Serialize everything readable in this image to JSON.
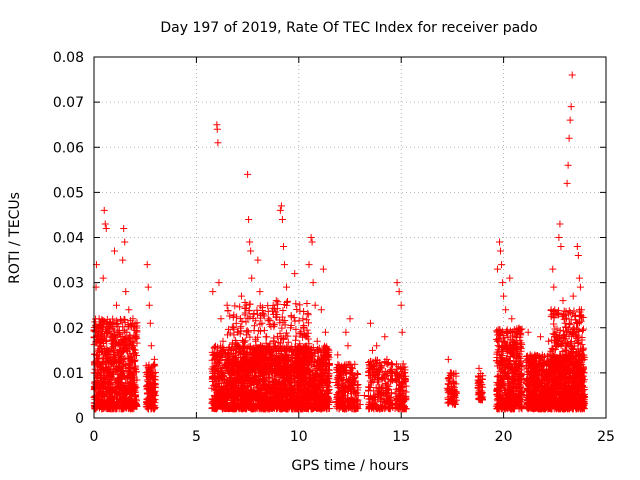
{
  "chart_data": {
    "type": "scatter",
    "title": "Day 197 of 2019, Rate Of TEC Index for receiver pado",
    "xlabel": "GPS time / hours",
    "ylabel": "ROTI / TECUs",
    "xlim": [
      0,
      25
    ],
    "ylim": [
      0,
      0.08
    ],
    "xticks": [
      0,
      5,
      10,
      15,
      20,
      25
    ],
    "xtick_labels": [
      "0",
      "5",
      "10",
      "15",
      "20",
      "25"
    ],
    "yticks": [
      0,
      0.01,
      0.02,
      0.03,
      0.04,
      0.05,
      0.06,
      0.07,
      0.08
    ],
    "ytick_labels": [
      "0",
      "0.01",
      "0.02",
      "0.03",
      "0.04",
      "0.05",
      "0.06",
      "0.07",
      "0.08"
    ],
    "grid": true,
    "marker": "+",
    "color": "#ff0000",
    "series": [
      {
        "name": "ROTI",
        "points": [
          [
            0.05,
            0.008
          ],
          [
            0.1,
            0.029
          ],
          [
            0.12,
            0.034
          ],
          [
            0.15,
            0.012
          ],
          [
            0.2,
            0.005
          ],
          [
            0.25,
            0.022
          ],
          [
            0.3,
            0.018
          ],
          [
            0.4,
            0.011
          ],
          [
            0.45,
            0.031
          ],
          [
            0.5,
            0.046
          ],
          [
            0.55,
            0.043
          ],
          [
            0.6,
            0.042
          ],
          [
            0.65,
            0.015
          ],
          [
            0.7,
            0.009
          ],
          [
            0.8,
            0.021
          ],
          [
            0.9,
            0.006
          ],
          [
            1.0,
            0.037
          ],
          [
            1.05,
            0.016
          ],
          [
            1.1,
            0.025
          ],
          [
            1.2,
            0.008
          ],
          [
            1.3,
            0.013
          ],
          [
            1.4,
            0.035
          ],
          [
            1.45,
            0.042
          ],
          [
            1.5,
            0.039
          ],
          [
            1.55,
            0.028
          ],
          [
            1.6,
            0.019
          ],
          [
            1.7,
            0.024
          ],
          [
            1.8,
            0.011
          ],
          [
            1.9,
            0.022
          ],
          [
            2.0,
            0.007
          ],
          [
            2.6,
            0.034
          ],
          [
            2.65,
            0.029
          ],
          [
            2.7,
            0.025
          ],
          [
            2.75,
            0.021
          ],
          [
            2.8,
            0.016
          ],
          [
            2.85,
            0.009
          ],
          [
            2.9,
            0.005
          ],
          [
            2.95,
            0.013
          ],
          [
            5.8,
            0.028
          ],
          [
            5.9,
            0.012
          ],
          [
            6.0,
            0.065
          ],
          [
            6.02,
            0.064
          ],
          [
            6.05,
            0.061
          ],
          [
            6.1,
            0.03
          ],
          [
            6.2,
            0.022
          ],
          [
            6.3,
            0.017
          ],
          [
            6.4,
            0.01
          ],
          [
            6.5,
            0.025
          ],
          [
            6.6,
            0.014
          ],
          [
            6.8,
            0.008
          ],
          [
            7.0,
            0.019
          ],
          [
            7.2,
            0.027
          ],
          [
            7.4,
            0.012
          ],
          [
            7.5,
            0.054
          ],
          [
            7.55,
            0.044
          ],
          [
            7.6,
            0.039
          ],
          [
            7.65,
            0.037
          ],
          [
            7.7,
            0.031
          ],
          [
            7.8,
            0.023
          ],
          [
            7.9,
            0.016
          ],
          [
            8.0,
            0.035
          ],
          [
            8.1,
            0.028
          ],
          [
            8.2,
            0.021
          ],
          [
            8.3,
            0.013
          ],
          [
            8.4,
            0.018
          ],
          [
            8.5,
            0.009
          ],
          [
            8.7,
            0.015
          ],
          [
            8.9,
            0.026
          ],
          [
            9.1,
            0.046
          ],
          [
            9.15,
            0.047
          ],
          [
            9.2,
            0.044
          ],
          [
            9.25,
            0.038
          ],
          [
            9.3,
            0.034
          ],
          [
            9.4,
            0.029
          ],
          [
            9.6,
            0.02
          ],
          [
            9.8,
            0.032
          ],
          [
            10.0,
            0.014
          ],
          [
            10.2,
            0.022
          ],
          [
            10.4,
            0.018
          ],
          [
            10.5,
            0.034
          ],
          [
            10.6,
            0.04
          ],
          [
            10.65,
            0.039
          ],
          [
            10.7,
            0.03
          ],
          [
            10.8,
            0.025
          ],
          [
            10.9,
            0.017
          ],
          [
            11.0,
            0.011
          ],
          [
            11.1,
            0.024
          ],
          [
            11.2,
            0.033
          ],
          [
            11.3,
            0.019
          ],
          [
            11.4,
            0.008
          ],
          [
            11.9,
            0.014
          ],
          [
            12.0,
            0.011
          ],
          [
            12.1,
            0.009
          ],
          [
            12.2,
            0.007
          ],
          [
            12.3,
            0.019
          ],
          [
            12.4,
            0.016
          ],
          [
            12.5,
            0.022
          ],
          [
            12.6,
            0.01
          ],
          [
            12.7,
            0.006
          ],
          [
            13.0,
            0.003
          ],
          [
            13.2,
            0.005
          ],
          [
            13.5,
            0.021
          ],
          [
            13.6,
            0.015
          ],
          [
            13.7,
            0.011
          ],
          [
            13.8,
            0.016
          ],
          [
            13.9,
            0.008
          ],
          [
            14.0,
            0.004
          ],
          [
            14.2,
            0.018
          ],
          [
            14.3,
            0.013
          ],
          [
            14.4,
            0.007
          ],
          [
            14.5,
            0.01
          ],
          [
            14.8,
            0.03
          ],
          [
            14.9,
            0.028
          ],
          [
            15.0,
            0.025
          ],
          [
            15.05,
            0.019
          ],
          [
            15.1,
            0.012
          ],
          [
            15.15,
            0.008
          ],
          [
            15.2,
            0.004
          ],
          [
            17.3,
            0.013
          ],
          [
            17.4,
            0.01
          ],
          [
            17.5,
            0.006
          ],
          [
            17.6,
            0.004
          ],
          [
            18.8,
            0.011
          ],
          [
            18.85,
            0.008
          ],
          [
            18.9,
            0.006
          ],
          [
            18.95,
            0.004
          ],
          [
            19.7,
            0.033
          ],
          [
            19.8,
            0.039
          ],
          [
            19.85,
            0.037
          ],
          [
            19.9,
            0.034
          ],
          [
            19.95,
            0.03
          ],
          [
            20.0,
            0.027
          ],
          [
            20.1,
            0.024
          ],
          [
            20.2,
            0.019
          ],
          [
            20.3,
            0.031
          ],
          [
            20.4,
            0.022
          ],
          [
            20.5,
            0.015
          ],
          [
            20.6,
            0.01
          ],
          [
            20.7,
            0.006
          ],
          [
            20.8,
            0.012
          ],
          [
            21.2,
            0.019
          ],
          [
            21.3,
            0.014
          ],
          [
            21.4,
            0.009
          ],
          [
            21.5,
            0.005
          ],
          [
            21.6,
            0.012
          ],
          [
            21.8,
            0.018
          ],
          [
            22.0,
            0.01
          ],
          [
            22.2,
            0.017
          ],
          [
            22.4,
            0.033
          ],
          [
            22.45,
            0.029
          ],
          [
            22.5,
            0.024
          ],
          [
            22.6,
            0.019
          ],
          [
            22.7,
            0.04
          ],
          [
            22.75,
            0.043
          ],
          [
            22.8,
            0.038
          ],
          [
            22.9,
            0.026
          ],
          [
            23.0,
            0.021
          ],
          [
            23.1,
            0.052
          ],
          [
            23.15,
            0.056
          ],
          [
            23.2,
            0.062
          ],
          [
            23.25,
            0.066
          ],
          [
            23.3,
            0.069
          ],
          [
            23.35,
            0.076
          ],
          [
            23.4,
            0.027
          ],
          [
            23.5,
            0.018
          ],
          [
            23.6,
            0.038
          ],
          [
            23.65,
            0.036
          ],
          [
            23.7,
            0.031
          ],
          [
            23.75,
            0.029
          ],
          [
            23.8,
            0.024
          ],
          [
            23.85,
            0.015
          ],
          [
            23.9,
            0.008
          ]
        ],
        "dense_bands": [
          {
            "x": [
              0.0,
              2.1
            ],
            "y": [
              0.002,
              0.022
            ],
            "count": 900
          },
          {
            "x": [
              2.55,
              3.0
            ],
            "y": [
              0.002,
              0.012
            ],
            "count": 160
          },
          {
            "x": [
              5.75,
              11.5
            ],
            "y": [
              0.002,
              0.016
            ],
            "count": 2200
          },
          {
            "x": [
              6.5,
              10.5
            ],
            "y": [
              0.01,
              0.026
            ],
            "count": 400
          },
          {
            "x": [
              11.8,
              12.9
            ],
            "y": [
              0.002,
              0.012
            ],
            "count": 240
          },
          {
            "x": [
              13.4,
              14.6
            ],
            "y": [
              0.002,
              0.013
            ],
            "count": 220
          },
          {
            "x": [
              14.7,
              15.25
            ],
            "y": [
              0.002,
              0.012
            ],
            "count": 120
          },
          {
            "x": [
              17.25,
              17.7
            ],
            "y": [
              0.003,
              0.01
            ],
            "count": 70
          },
          {
            "x": [
              18.75,
              19.0
            ],
            "y": [
              0.004,
              0.01
            ],
            "count": 50
          },
          {
            "x": [
              19.65,
              20.9
            ],
            "y": [
              0.002,
              0.02
            ],
            "count": 520
          },
          {
            "x": [
              21.1,
              23.95
            ],
            "y": [
              0.002,
              0.014
            ],
            "count": 1300
          },
          {
            "x": [
              22.3,
              23.9
            ],
            "y": [
              0.01,
              0.024
            ],
            "count": 260
          }
        ]
      }
    ]
  }
}
